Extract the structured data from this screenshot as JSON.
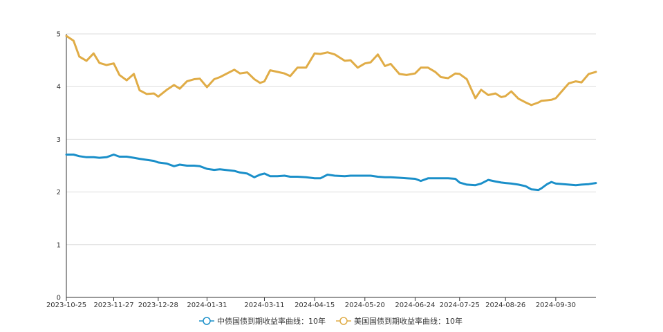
{
  "chart_data": {
    "type": "line",
    "title": "",
    "xlabel": "",
    "ylabel": "",
    "ylim": [
      0,
      5
    ],
    "y_ticks": [
      "0",
      "1",
      "2",
      "3",
      "4",
      "5"
    ],
    "x_ticks": [
      "2023-10-25",
      "2023-11-27",
      "2023-12-28",
      "2024-01-31",
      "2024-03-11",
      "2024-04-15",
      "2024-05-20",
      "2024-06-24",
      "2024-07-25",
      "2024-08-26",
      "2024-09-30"
    ],
    "grid": true,
    "legend_position": "bottom",
    "series": [
      {
        "name": "中债国债到期收益率曲线：10年",
        "color": "#1a8fc9",
        "points": [
          [
            "2023-10-25",
            2.71
          ],
          [
            "2023-10-30",
            2.71
          ],
          [
            "2023-11-03",
            2.68
          ],
          [
            "2023-11-08",
            2.66
          ],
          [
            "2023-11-13",
            2.66
          ],
          [
            "2023-11-17",
            2.65
          ],
          [
            "2023-11-22",
            2.66
          ],
          [
            "2023-11-27",
            2.71
          ],
          [
            "2023-12-01",
            2.67
          ],
          [
            "2023-12-06",
            2.67
          ],
          [
            "2023-12-11",
            2.65
          ],
          [
            "2023-12-15",
            2.63
          ],
          [
            "2023-12-20",
            2.61
          ],
          [
            "2023-12-25",
            2.59
          ],
          [
            "2023-12-28",
            2.56
          ],
          [
            "2024-01-03",
            2.54
          ],
          [
            "2024-01-08",
            2.49
          ],
          [
            "2024-01-12",
            2.52
          ],
          [
            "2024-01-17",
            2.5
          ],
          [
            "2024-01-22",
            2.5
          ],
          [
            "2024-01-26",
            2.49
          ],
          [
            "2024-01-31",
            2.44
          ],
          [
            "2024-02-05",
            2.42
          ],
          [
            "2024-02-09",
            2.43
          ],
          [
            "2024-02-19",
            2.4
          ],
          [
            "2024-02-23",
            2.37
          ],
          [
            "2024-02-28",
            2.35
          ],
          [
            "2024-03-04",
            2.28
          ],
          [
            "2024-03-08",
            2.33
          ],
          [
            "2024-03-11",
            2.35
          ],
          [
            "2024-03-15",
            2.3
          ],
          [
            "2024-03-20",
            2.3
          ],
          [
            "2024-03-25",
            2.31
          ],
          [
            "2024-03-29",
            2.29
          ],
          [
            "2024-04-03",
            2.29
          ],
          [
            "2024-04-09",
            2.28
          ],
          [
            "2024-04-15",
            2.26
          ],
          [
            "2024-04-19",
            2.26
          ],
          [
            "2024-04-24",
            2.33
          ],
          [
            "2024-04-29",
            2.31
          ],
          [
            "2024-05-06",
            2.3
          ],
          [
            "2024-05-10",
            2.31
          ],
          [
            "2024-05-15",
            2.31
          ],
          [
            "2024-05-20",
            2.31
          ],
          [
            "2024-05-24",
            2.31
          ],
          [
            "2024-05-29",
            2.29
          ],
          [
            "2024-06-03",
            2.28
          ],
          [
            "2024-06-07",
            2.28
          ],
          [
            "2024-06-13",
            2.27
          ],
          [
            "2024-06-18",
            2.26
          ],
          [
            "2024-06-24",
            2.25
          ],
          [
            "2024-06-28",
            2.21
          ],
          [
            "2024-07-03",
            2.26
          ],
          [
            "2024-07-08",
            2.26
          ],
          [
            "2024-07-12",
            2.26
          ],
          [
            "2024-07-17",
            2.26
          ],
          [
            "2024-07-22",
            2.25
          ],
          [
            "2024-07-25",
            2.18
          ],
          [
            "2024-07-30",
            2.14
          ],
          [
            "2024-08-05",
            2.13
          ],
          [
            "2024-08-09",
            2.16
          ],
          [
            "2024-08-14",
            2.23
          ],
          [
            "2024-08-19",
            2.2
          ],
          [
            "2024-08-23",
            2.18
          ],
          [
            "2024-08-26",
            2.17
          ],
          [
            "2024-08-30",
            2.16
          ],
          [
            "2024-09-04",
            2.14
          ],
          [
            "2024-09-09",
            2.11
          ],
          [
            "2024-09-13",
            2.05
          ],
          [
            "2024-09-18",
            2.04
          ],
          [
            "2024-09-20",
            2.07
          ],
          [
            "2024-09-24",
            2.15
          ],
          [
            "2024-09-27",
            2.19
          ],
          [
            "2024-09-30",
            2.16
          ],
          [
            "2024-10-09",
            2.14
          ],
          [
            "2024-10-14",
            2.13
          ],
          [
            "2024-10-18",
            2.14
          ],
          [
            "2024-10-23",
            2.15
          ],
          [
            "2024-10-28",
            2.17
          ]
        ]
      },
      {
        "name": "美国国债到期收益率曲线：10年",
        "color": "#e0ac46",
        "points": [
          [
            "2023-10-25",
            4.96
          ],
          [
            "2023-10-30",
            4.87
          ],
          [
            "2023-11-03",
            4.57
          ],
          [
            "2023-11-08",
            4.49
          ],
          [
            "2023-11-13",
            4.63
          ],
          [
            "2023-11-17",
            4.45
          ],
          [
            "2023-11-22",
            4.41
          ],
          [
            "2023-11-27",
            4.44
          ],
          [
            "2023-12-01",
            4.22
          ],
          [
            "2023-12-06",
            4.12
          ],
          [
            "2023-12-11",
            4.24
          ],
          [
            "2023-12-15",
            3.93
          ],
          [
            "2023-12-20",
            3.86
          ],
          [
            "2023-12-25",
            3.87
          ],
          [
            "2023-12-28",
            3.81
          ],
          [
            "2024-01-03",
            3.94
          ],
          [
            "2024-01-08",
            4.03
          ],
          [
            "2024-01-12",
            3.96
          ],
          [
            "2024-01-17",
            4.1
          ],
          [
            "2024-01-22",
            4.14
          ],
          [
            "2024-01-26",
            4.15
          ],
          [
            "2024-01-31",
            3.99
          ],
          [
            "2024-02-05",
            4.14
          ],
          [
            "2024-02-09",
            4.18
          ],
          [
            "2024-02-19",
            4.32
          ],
          [
            "2024-02-23",
            4.25
          ],
          [
            "2024-02-28",
            4.27
          ],
          [
            "2024-03-04",
            4.14
          ],
          [
            "2024-03-08",
            4.07
          ],
          [
            "2024-03-11",
            4.1
          ],
          [
            "2024-03-15",
            4.31
          ],
          [
            "2024-03-20",
            4.28
          ],
          [
            "2024-03-25",
            4.25
          ],
          [
            "2024-03-29",
            4.2
          ],
          [
            "2024-04-03",
            4.36
          ],
          [
            "2024-04-09",
            4.36
          ],
          [
            "2024-04-15",
            4.63
          ],
          [
            "2024-04-19",
            4.62
          ],
          [
            "2024-04-24",
            4.65
          ],
          [
            "2024-04-29",
            4.61
          ],
          [
            "2024-05-06",
            4.49
          ],
          [
            "2024-05-10",
            4.5
          ],
          [
            "2024-05-15",
            4.36
          ],
          [
            "2024-05-20",
            4.44
          ],
          [
            "2024-05-24",
            4.46
          ],
          [
            "2024-05-29",
            4.61
          ],
          [
            "2024-06-03",
            4.39
          ],
          [
            "2024-06-07",
            4.43
          ],
          [
            "2024-06-13",
            4.24
          ],
          [
            "2024-06-18",
            4.22
          ],
          [
            "2024-06-24",
            4.25
          ],
          [
            "2024-06-28",
            4.36
          ],
          [
            "2024-07-03",
            4.36
          ],
          [
            "2024-07-08",
            4.28
          ],
          [
            "2024-07-12",
            4.18
          ],
          [
            "2024-07-17",
            4.16
          ],
          [
            "2024-07-22",
            4.25
          ],
          [
            "2024-07-25",
            4.24
          ],
          [
            "2024-07-30",
            4.14
          ],
          [
            "2024-08-05",
            3.78
          ],
          [
            "2024-08-09",
            3.94
          ],
          [
            "2024-08-14",
            3.84
          ],
          [
            "2024-08-19",
            3.87
          ],
          [
            "2024-08-23",
            3.8
          ],
          [
            "2024-08-26",
            3.82
          ],
          [
            "2024-08-30",
            3.91
          ],
          [
            "2024-09-04",
            3.77
          ],
          [
            "2024-09-09",
            3.7
          ],
          [
            "2024-09-13",
            3.65
          ],
          [
            "2024-09-18",
            3.7
          ],
          [
            "2024-09-20",
            3.73
          ],
          [
            "2024-09-24",
            3.74
          ],
          [
            "2024-09-27",
            3.75
          ],
          [
            "2024-09-30",
            3.78
          ],
          [
            "2024-10-09",
            4.06
          ],
          [
            "2024-10-14",
            4.1
          ],
          [
            "2024-10-18",
            4.08
          ],
          [
            "2024-10-23",
            4.24
          ],
          [
            "2024-10-28",
            4.28
          ]
        ]
      }
    ]
  }
}
